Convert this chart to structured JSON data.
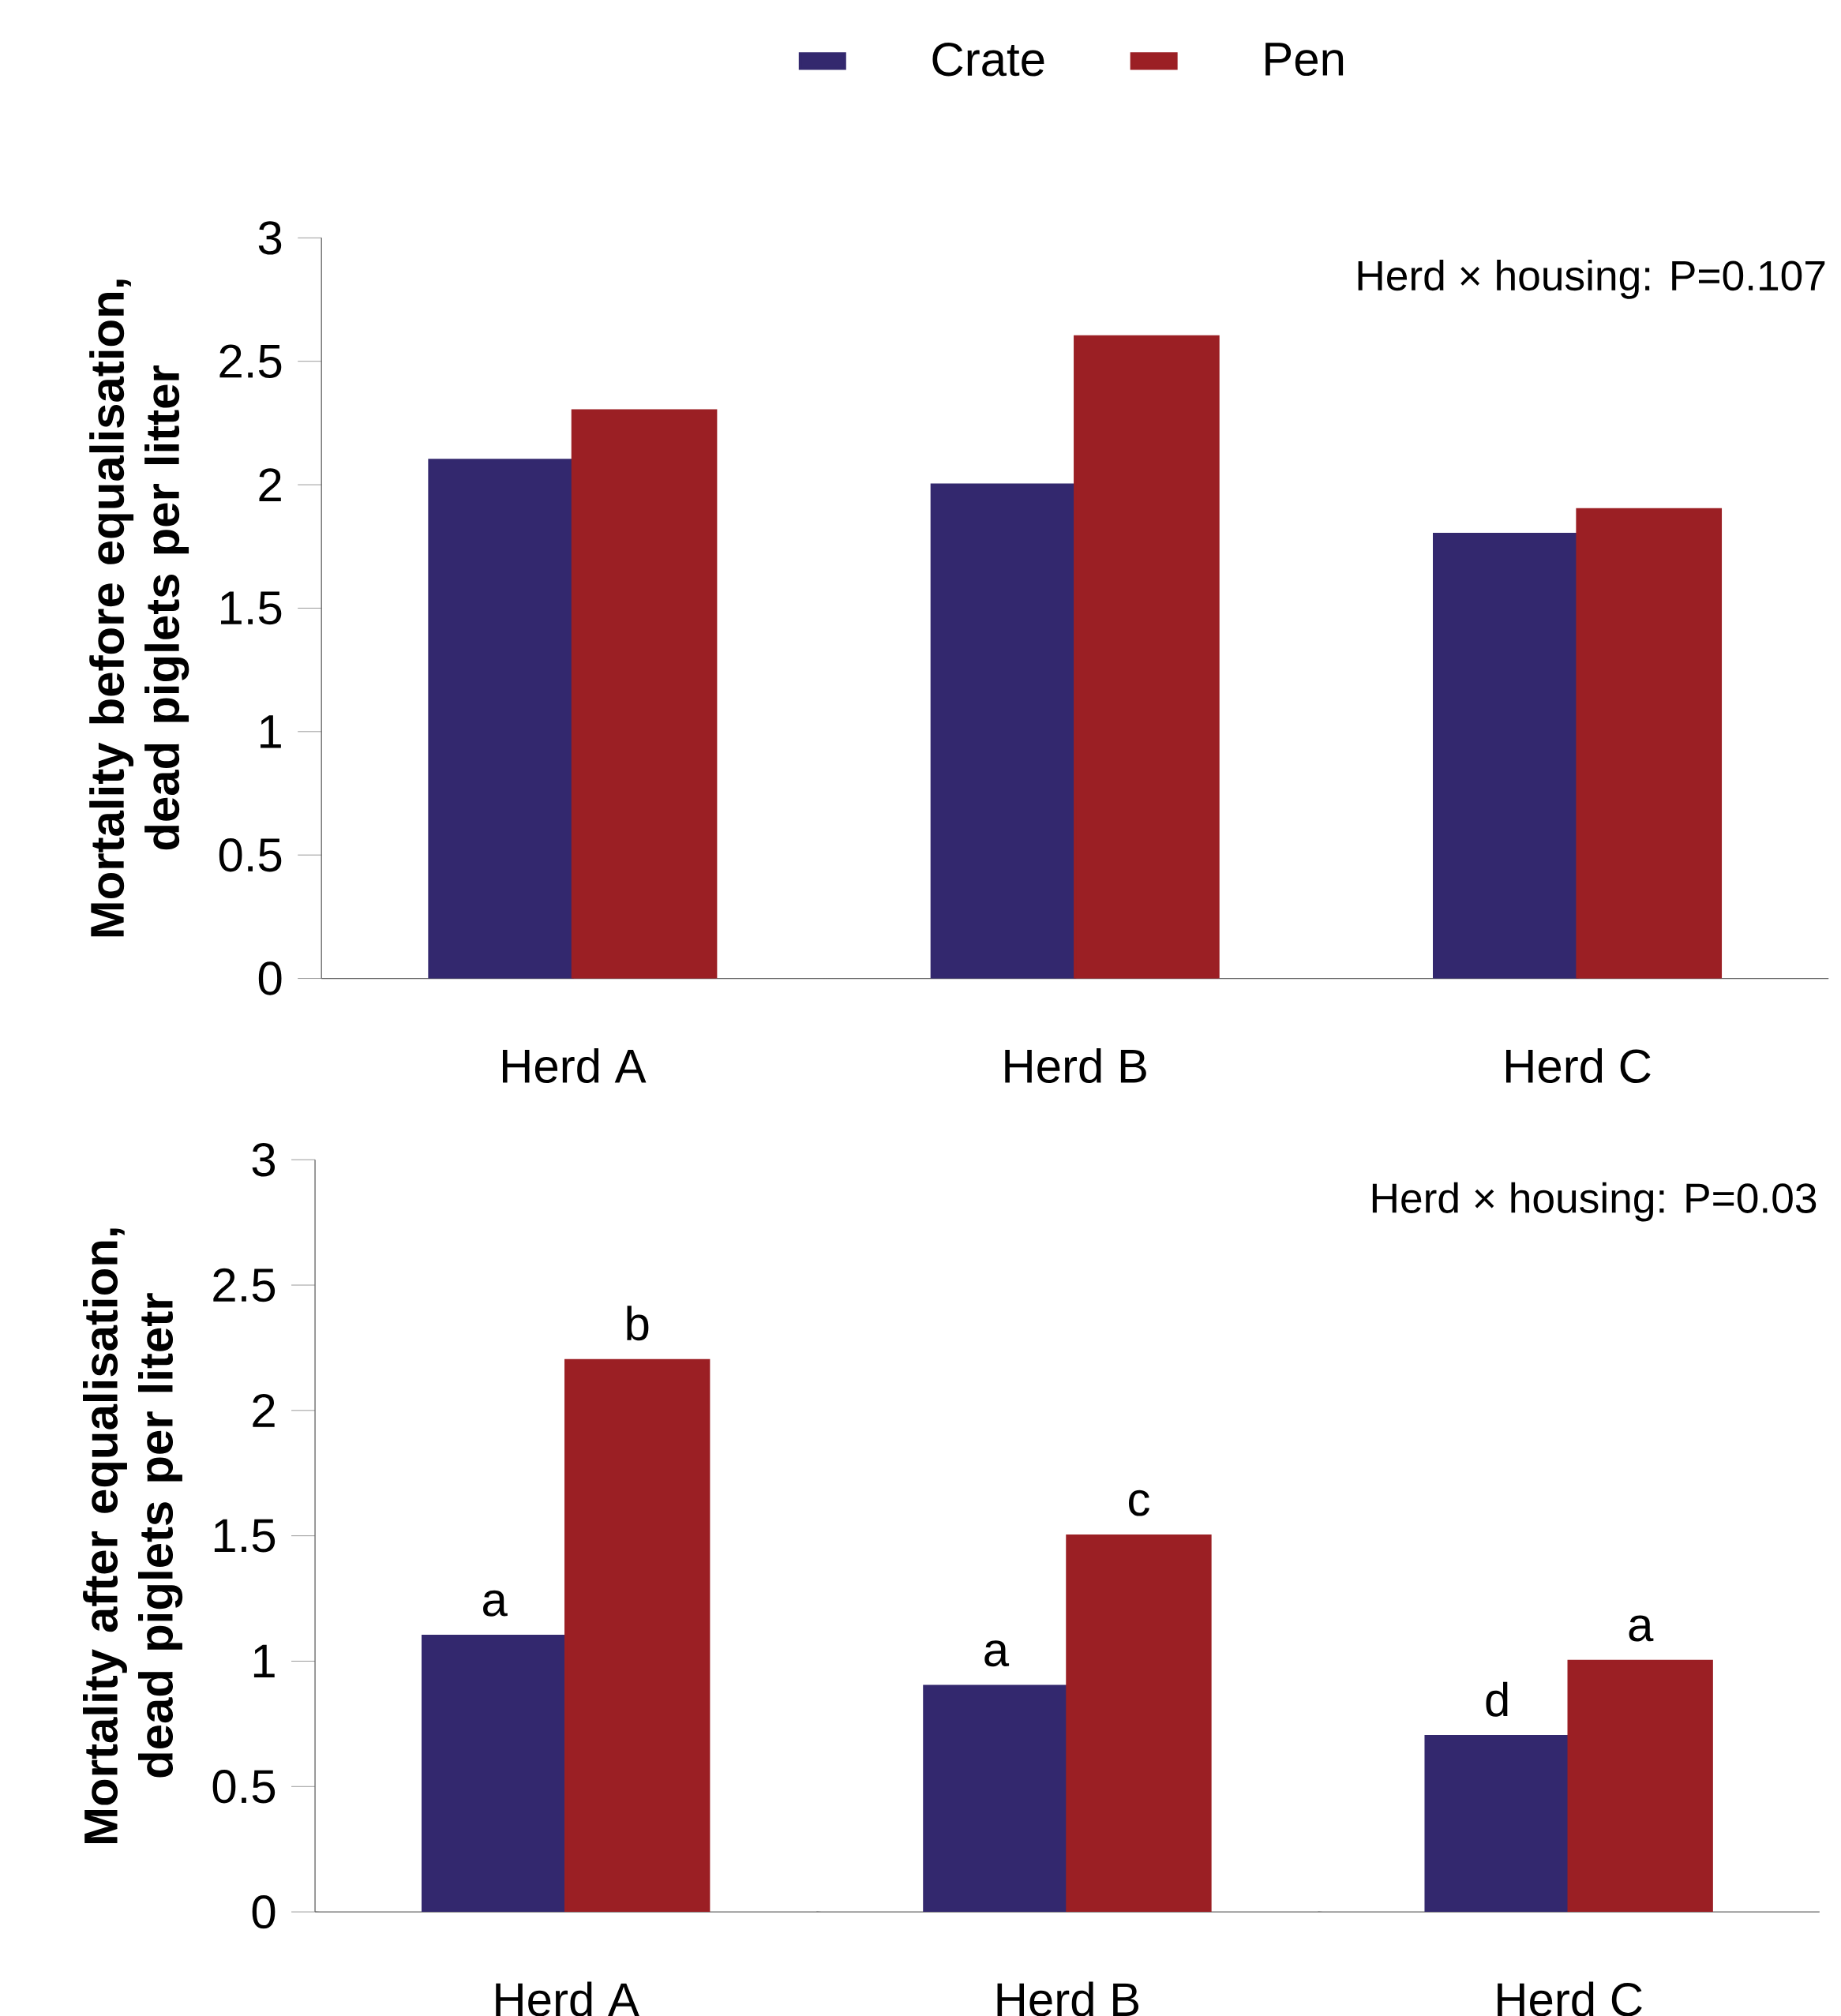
{
  "chart_data": [
    {
      "type": "bar",
      "ylabel": "Mortality before equalisation, dead piglets per litter",
      "categories": [
        "Herd A",
        "Herd B",
        "Herd C"
      ],
      "series": [
        {
          "name": "Crate",
          "color": "#33286e",
          "values": [
            2.1,
            2.0,
            1.8
          ]
        },
        {
          "name": "Pen",
          "color": "#9b1f24",
          "values": [
            2.3,
            2.6,
            1.9
          ]
        }
      ],
      "ylim": [
        0,
        3
      ],
      "yticks": [
        0,
        0.5,
        1,
        1.5,
        2,
        2.5,
        3
      ],
      "legend": "top",
      "annotations": [
        "Herd × housing: P=0.107"
      ]
    },
    {
      "type": "bar",
      "ylabel": "Mortality after equalisation, dead piglets per litetr",
      "categories": [
        "Herd A",
        "Herd B",
        "Herd C"
      ],
      "series": [
        {
          "color": "#33286e",
          "values": [
            1.1,
            0.9,
            0.7
          ]
        },
        {
          "color": "#9b1f24",
          "values": [
            2.2,
            1.5,
            1.0
          ]
        }
      ],
      "ylim": [
        0,
        3
      ],
      "yticks": [
        0,
        0.5,
        1,
        1.5,
        2,
        2.5,
        3
      ],
      "annotations": [
        "Herd × housing: P=0.03",
        {
          "text": "a",
          "x": "Herd A",
          "y": 1.1
        },
        {
          "text": "b",
          "x": "Herd A",
          "y": 2.2
        },
        {
          "text": "a",
          "x": "Herd B",
          "y": 0.9
        },
        {
          "text": "c",
          "x": "Herd B",
          "y": 1.5
        },
        {
          "text": "d",
          "x": "Herd C",
          "y": 0.7
        },
        {
          "text": "a",
          "x": "Herd C",
          "y": 1.0
        }
      ]
    }
  ]
}
